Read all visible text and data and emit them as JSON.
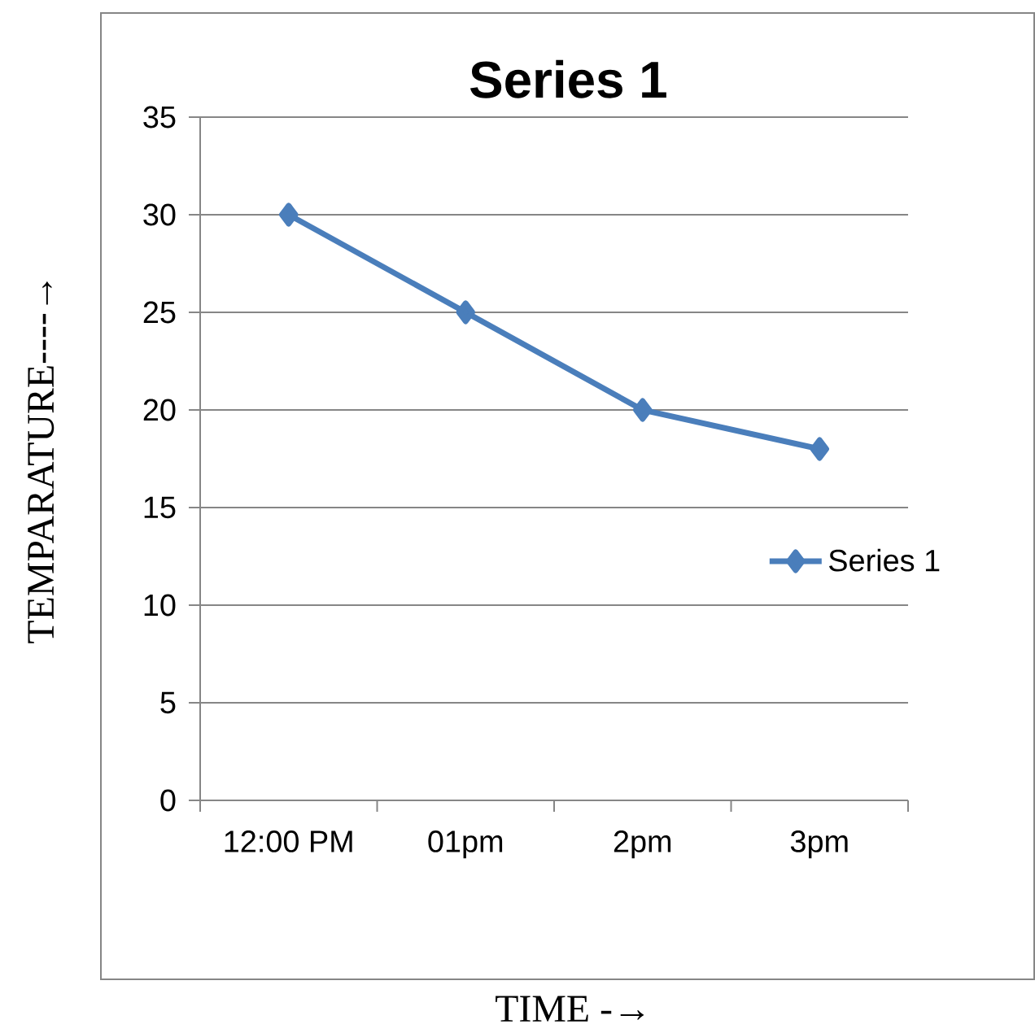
{
  "chart_data": {
    "type": "line",
    "title": "Series 1",
    "xlabel": "TIME -→",
    "ylabel": "TEMPARATURE----→",
    "categories": [
      "12:00 PM",
      "01pm",
      "2pm",
      "3pm"
    ],
    "series": [
      {
        "name": "Series 1",
        "color": "#4a7ebb",
        "values": [
          30,
          25,
          20,
          18
        ]
      }
    ],
    "ylim": [
      0,
      35
    ],
    "yticks": [
      0,
      5,
      10,
      15,
      20,
      25,
      30,
      35
    ],
    "grid": "y",
    "legend": "right",
    "marker": "diamond",
    "line_style": "solid"
  }
}
